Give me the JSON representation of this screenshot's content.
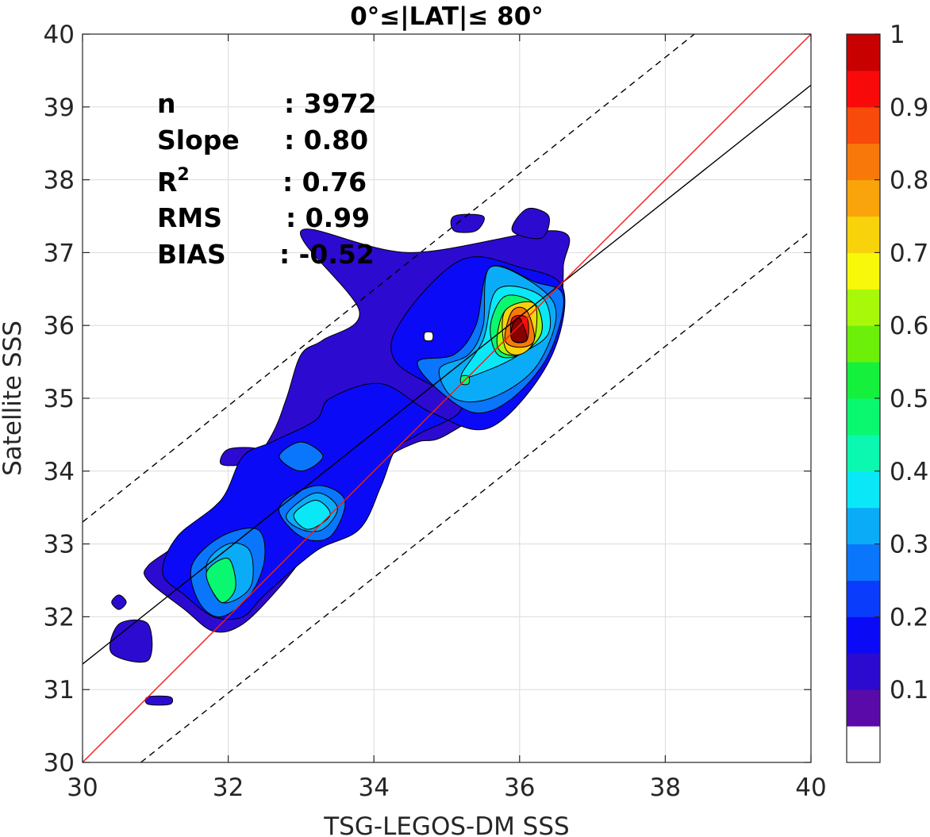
{
  "chart_data": {
    "type": "heatmap",
    "subtype": "filled-contour density scatter",
    "title": "0°≤|LAT|≤ 80°",
    "xlabel": "TSG-LEGOS-DM SSS",
    "ylabel": "Satellite SSS",
    "xlim": [
      30,
      40
    ],
    "ylim": [
      30,
      40
    ],
    "x_ticks": [
      30,
      32,
      34,
      36,
      38,
      40
    ],
    "y_ticks": [
      30,
      31,
      32,
      33,
      34,
      35,
      36,
      37,
      38,
      39,
      40
    ],
    "grid": true,
    "stats": [
      {
        "label": "n",
        "sep": ": ",
        "value": "3972"
      },
      {
        "label": "Slope",
        "sep": ": ",
        "value": "0.80"
      },
      {
        "label": "R",
        "sup": "2",
        "sep": ": ",
        "value": "0.76"
      },
      {
        "label": "RMS",
        "sep": ": ",
        "value": "0.99"
      },
      {
        "label": "BIAS",
        "sep": ": ",
        "value": "-0.52"
      }
    ],
    "lines": {
      "identity": {
        "color": "#e8201e",
        "points": [
          [
            30,
            30
          ],
          [
            40,
            40
          ]
        ]
      },
      "regression": {
        "color": "#000000",
        "points": [
          [
            30,
            31.35
          ],
          [
            40,
            39.3
          ]
        ]
      },
      "upper_dashed": {
        "color": "#000000",
        "points": [
          [
            30,
            33.3
          ],
          [
            38.4,
            40
          ]
        ]
      },
      "lower_dashed": {
        "color": "#000000",
        "points": [
          [
            30.8,
            30
          ],
          [
            40,
            37.3
          ]
        ]
      }
    },
    "colorbar": {
      "ticks": [
        0.1,
        0.2,
        0.3,
        0.4,
        0.5,
        0.6,
        0.7,
        0.8,
        0.9,
        1
      ],
      "tick_labels": [
        "0.1",
        "0.2",
        "0.3",
        "0.4",
        "0.5",
        "0.6",
        "0.7",
        "0.8",
        "0.9",
        "1"
      ],
      "levels": [
        0,
        0.05,
        0.1,
        0.15,
        0.2,
        0.25,
        0.3,
        0.35,
        0.4,
        0.45,
        0.5,
        0.55,
        0.6,
        0.65,
        0.7,
        0.75,
        0.8,
        0.85,
        0.9,
        0.95,
        1.0
      ],
      "colors": [
        "#ffffff",
        "#5a0aa8",
        "#2d0ad0",
        "#0b0af6",
        "#0a3cfb",
        "#0a76fb",
        "#0aacf8",
        "#0ae8f8",
        "#0af8b0",
        "#0af870",
        "#14f03c",
        "#6cf00a",
        "#a8f80a",
        "#f8f80a",
        "#f8d20a",
        "#f8a40a",
        "#f8780a",
        "#f84a0a",
        "#f80a0a",
        "#c80000",
        "#880000"
      ]
    },
    "contours": [
      {
        "level": 0.1,
        "color": "#2d0ad0",
        "polys": [
          [
            [
              33.0,
              37.3
            ],
            [
              34.5,
              37.0
            ],
            [
              36.5,
              37.3
            ],
            [
              36.6,
              36.8
            ],
            [
              36.5,
              36.0
            ],
            [
              36.0,
              35.2
            ],
            [
              35.0,
              34.5
            ],
            [
              34.6,
              34.4
            ],
            [
              34.2,
              34.2
            ],
            [
              33.9,
              33.9
            ],
            [
              33.6,
              33.2
            ],
            [
              33.2,
              33.0
            ],
            [
              32.7,
              32.4
            ],
            [
              32.2,
              31.9
            ],
            [
              31.8,
              31.8
            ],
            [
              31.4,
              32.1
            ],
            [
              30.9,
              32.5
            ],
            [
              30.9,
              32.7
            ],
            [
              31.3,
              33.0
            ],
            [
              31.8,
              33.5
            ],
            [
              32.2,
              33.9
            ],
            [
              32.6,
              34.5
            ],
            [
              32.8,
              35.0
            ],
            [
              33.0,
              35.6
            ],
            [
              33.3,
              35.8
            ],
            [
              33.8,
              36.2
            ]
          ],
          [
            [
              36.1,
              37.6
            ],
            [
              36.4,
              37.5
            ],
            [
              36.3,
              37.2
            ],
            [
              35.9,
              37.3
            ]
          ],
          [
            [
              35.1,
              37.5
            ],
            [
              35.5,
              37.5
            ],
            [
              35.4,
              37.3
            ],
            [
              35.1,
              37.3
            ]
          ],
          [
            [
              32.0,
              34.3
            ],
            [
              32.4,
              34.3
            ],
            [
              32.2,
              34.1
            ],
            [
              31.9,
              34.1
            ]
          ],
          [
            [
              30.4,
              32.2
            ],
            [
              30.5,
              32.3
            ],
            [
              30.6,
              32.2
            ],
            [
              30.5,
              32.1
            ]
          ],
          [
            [
              30.5,
              31.9
            ],
            [
              30.9,
              31.9
            ],
            [
              30.9,
              31.4
            ],
            [
              30.4,
              31.5
            ]
          ],
          [
            [
              30.9,
              30.9
            ],
            [
              31.2,
              30.9
            ],
            [
              31.2,
              30.8
            ],
            [
              30.9,
              30.8
            ]
          ]
        ]
      },
      {
        "level": 0.15,
        "color": "#0b0af6",
        "polys": [
          [
            [
              34.4,
              36.1
            ],
            [
              35.2,
              36.9
            ],
            [
              36.0,
              36.8
            ],
            [
              36.6,
              36.5
            ],
            [
              36.4,
              35.5
            ],
            [
              35.6,
              34.6
            ],
            [
              34.8,
              34.8
            ],
            [
              34.1,
              35.2
            ],
            [
              33.4,
              35.0
            ],
            [
              33.2,
              34.7
            ],
            [
              32.6,
              34.4
            ],
            [
              32.2,
              34.2
            ],
            [
              31.9,
              33.6
            ],
            [
              31.3,
              33.1
            ],
            [
              31.1,
              32.6
            ],
            [
              31.4,
              32.3
            ],
            [
              31.8,
              32.0
            ],
            [
              32.2,
              32.0
            ],
            [
              32.5,
              32.3
            ],
            [
              33.2,
              32.9
            ],
            [
              33.8,
              33.2
            ],
            [
              34.1,
              33.8
            ],
            [
              34.3,
              34.3
            ],
            [
              34.6,
              34.5
            ],
            [
              35.2,
              34.9
            ],
            [
              34.3,
              35.5
            ]
          ]
        ]
      },
      {
        "level": 0.25,
        "color": "#0a76fb",
        "polys": [
          [
            [
              35.6,
              36.8
            ],
            [
              36.2,
              36.6
            ],
            [
              36.6,
              36.4
            ],
            [
              36.4,
              35.6
            ],
            [
              35.9,
              35.0
            ],
            [
              35.4,
              34.8
            ],
            [
              34.9,
              35.1
            ],
            [
              34.6,
              35.5
            ],
            [
              35.1,
              35.6
            ],
            [
              35.4,
              36.0
            ]
          ],
          [
            [
              31.5,
              32.7
            ],
            [
              31.9,
              33.1
            ],
            [
              32.4,
              33.2
            ],
            [
              32.5,
              32.8
            ],
            [
              32.3,
              32.3
            ],
            [
              31.9,
              32.0
            ],
            [
              31.6,
              32.2
            ]
          ],
          [
            [
              32.7,
              33.5
            ],
            [
              33.2,
              33.8
            ],
            [
              33.6,
              33.6
            ],
            [
              33.4,
              33.1
            ],
            [
              33.0,
              33.1
            ]
          ],
          [
            [
              32.7,
              34.2
            ],
            [
              33.0,
              34.4
            ],
            [
              33.3,
              34.2
            ],
            [
              33.0,
              34.0
            ]
          ]
        ]
      },
      {
        "level": 0.3,
        "color": "#0aacf8",
        "polys": [
          [
            [
              35.6,
              36.8
            ],
            [
              36.3,
              36.5
            ],
            [
              36.5,
              36.1
            ],
            [
              36.2,
              35.4
            ],
            [
              35.6,
              35.0
            ],
            [
              35.1,
              35.0
            ],
            [
              34.9,
              35.4
            ],
            [
              35.3,
              35.6
            ],
            [
              35.5,
              36.0
            ]
          ],
          [
            [
              31.7,
              32.7
            ],
            [
              32.0,
              33.0
            ],
            [
              32.3,
              32.9
            ],
            [
              32.3,
              32.4
            ],
            [
              31.9,
              32.2
            ]
          ],
          [
            [
              32.8,
              33.4
            ],
            [
              33.2,
              33.7
            ],
            [
              33.5,
              33.5
            ],
            [
              33.3,
              33.2
            ],
            [
              33.0,
              33.2
            ]
          ]
        ]
      },
      {
        "level": 0.35,
        "color": "#0ae8f8",
        "polys": [
          [
            [
              35.7,
              36.5
            ],
            [
              36.3,
              36.4
            ],
            [
              36.4,
              35.9
            ],
            [
              36.0,
              35.6
            ],
            [
              35.6,
              35.4
            ],
            [
              35.2,
              35.3
            ],
            [
              35.5,
              35.8
            ]
          ],
          [
            [
              32.9,
              33.4
            ],
            [
              33.2,
              33.6
            ],
            [
              33.4,
              33.4
            ],
            [
              33.1,
              33.2
            ]
          ]
        ]
      },
      {
        "level": 0.45,
        "color": "#0af870",
        "polys": [
          [
            [
              35.8,
              36.4
            ],
            [
              36.2,
              36.3
            ],
            [
              36.3,
              35.9
            ],
            [
              36.0,
              35.6
            ],
            [
              35.7,
              35.6
            ],
            [
              35.6,
              36.0
            ]
          ],
          [
            [
              31.7,
              32.6
            ],
            [
              32.0,
              32.8
            ],
            [
              32.1,
              32.4
            ],
            [
              31.9,
              32.2
            ]
          ],
          [
            [
              35.2,
              35.3
            ],
            [
              35.3,
              35.3
            ],
            [
              35.3,
              35.2
            ],
            [
              35.2,
              35.2
            ]
          ]
        ]
      },
      {
        "level": 0.55,
        "color": "#a8f80a",
        "polys": [
          [
            [
              35.8,
              36.2
            ],
            [
              36.2,
              36.3
            ],
            [
              36.3,
              35.9
            ],
            [
              36.0,
              35.6
            ],
            [
              35.7,
              35.7
            ]
          ]
        ]
      },
      {
        "level": 0.65,
        "color": "#f8d20a",
        "polys": [
          [
            [
              35.8,
              36.2
            ],
            [
              36.2,
              36.3
            ],
            [
              36.2,
              35.8
            ],
            [
              36.0,
              35.6
            ],
            [
              35.8,
              35.7
            ]
          ]
        ]
      },
      {
        "level": 0.75,
        "color": "#f8780a",
        "polys": [
          [
            [
              35.9,
              36.2
            ],
            [
              36.1,
              36.2
            ],
            [
              36.2,
              35.8
            ],
            [
              36.0,
              35.7
            ],
            [
              35.8,
              35.8
            ]
          ]
        ]
      },
      {
        "level": 0.85,
        "color": "#f80a0a",
        "polys": [
          [
            [
              35.9,
              36.1
            ],
            [
              36.1,
              36.1
            ],
            [
              36.1,
              35.8
            ],
            [
              35.9,
              35.8
            ]
          ]
        ]
      },
      {
        "level": 0.95,
        "color": "#880000",
        "polys": [
          [
            [
              35.9,
              36.0
            ],
            [
              36.0,
              36.1
            ],
            [
              36.1,
              35.8
            ],
            [
              35.9,
              35.8
            ]
          ]
        ]
      },
      {
        "level": 0,
        "color": "#ffffff",
        "polys": [
          [
            [
              34.7,
              35.9
            ],
            [
              34.8,
              35.9
            ],
            [
              34.8,
              35.8
            ],
            [
              34.7,
              35.8
            ]
          ]
        ]
      }
    ]
  }
}
